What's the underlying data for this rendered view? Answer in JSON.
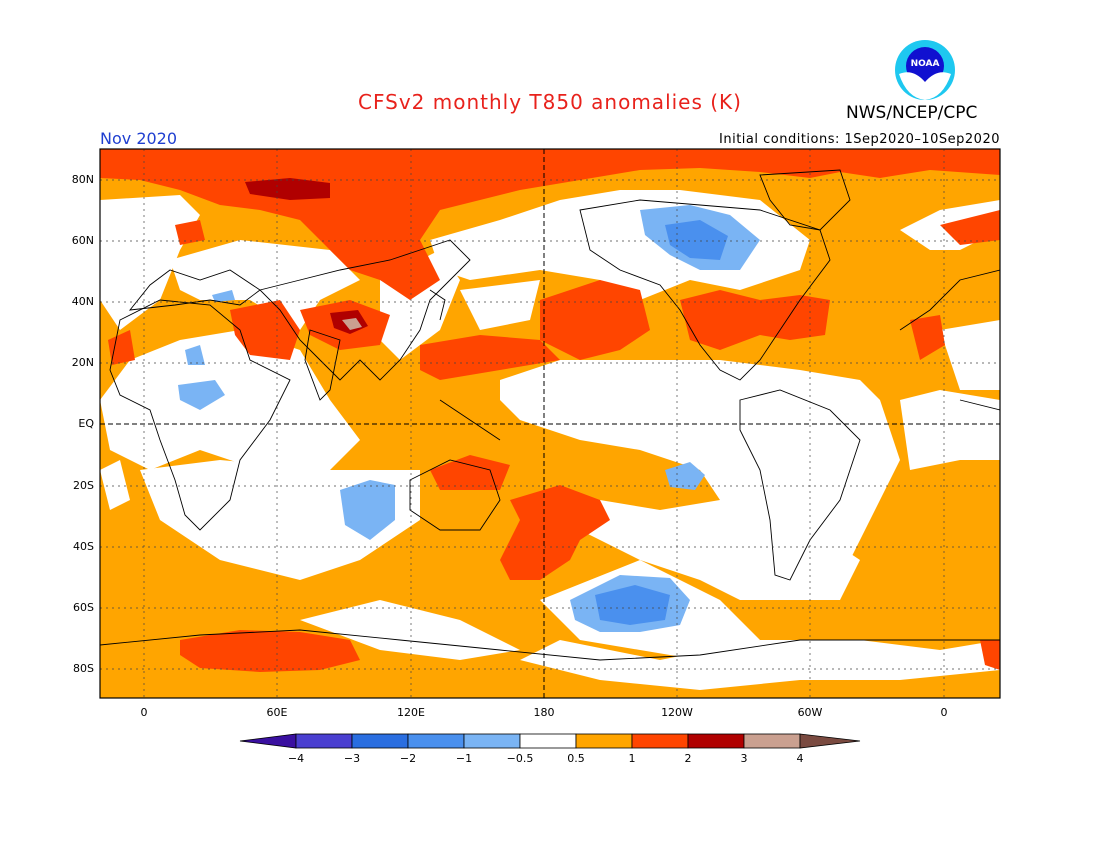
{
  "header": {
    "title": "CFSv2 monthly T850 anomalies (K)",
    "agency": "NWS/NCEP/CPC",
    "logo_text": "NOAA",
    "month": "Nov 2020",
    "initial_conditions": "Initial conditions: 1Sep2020–10Sep2020"
  },
  "axes": {
    "lat_labels": [
      "80N",
      "60N",
      "40N",
      "20N",
      "EQ",
      "20S",
      "40S",
      "60S",
      "80S"
    ],
    "lon_labels": [
      "0",
      "60E",
      "120E",
      "180",
      "120W",
      "60W",
      "0"
    ]
  },
  "colorbar": {
    "labels": [
      "−4",
      "−3",
      "−2",
      "−1",
      "−0.5",
      "0.5",
      "1",
      "2",
      "3",
      "4"
    ],
    "colors": [
      "#3a10a0",
      "#4a3fd0",
      "#2a6ee0",
      "#4a90ee",
      "#7ab4f4",
      "#ffffff",
      "#ffa500",
      "#ff4500",
      "#b00000",
      "#caa090",
      "#7a4a40"
    ]
  },
  "colors": {
    "title": "#e8221c",
    "month": "#1f3fd0",
    "warm1": "#ffa500",
    "warm2": "#ff4500",
    "warm3": "#b00000",
    "warm4": "#caa090",
    "cool1": "#7ab4f4",
    "cool2": "#4a90ee"
  }
}
